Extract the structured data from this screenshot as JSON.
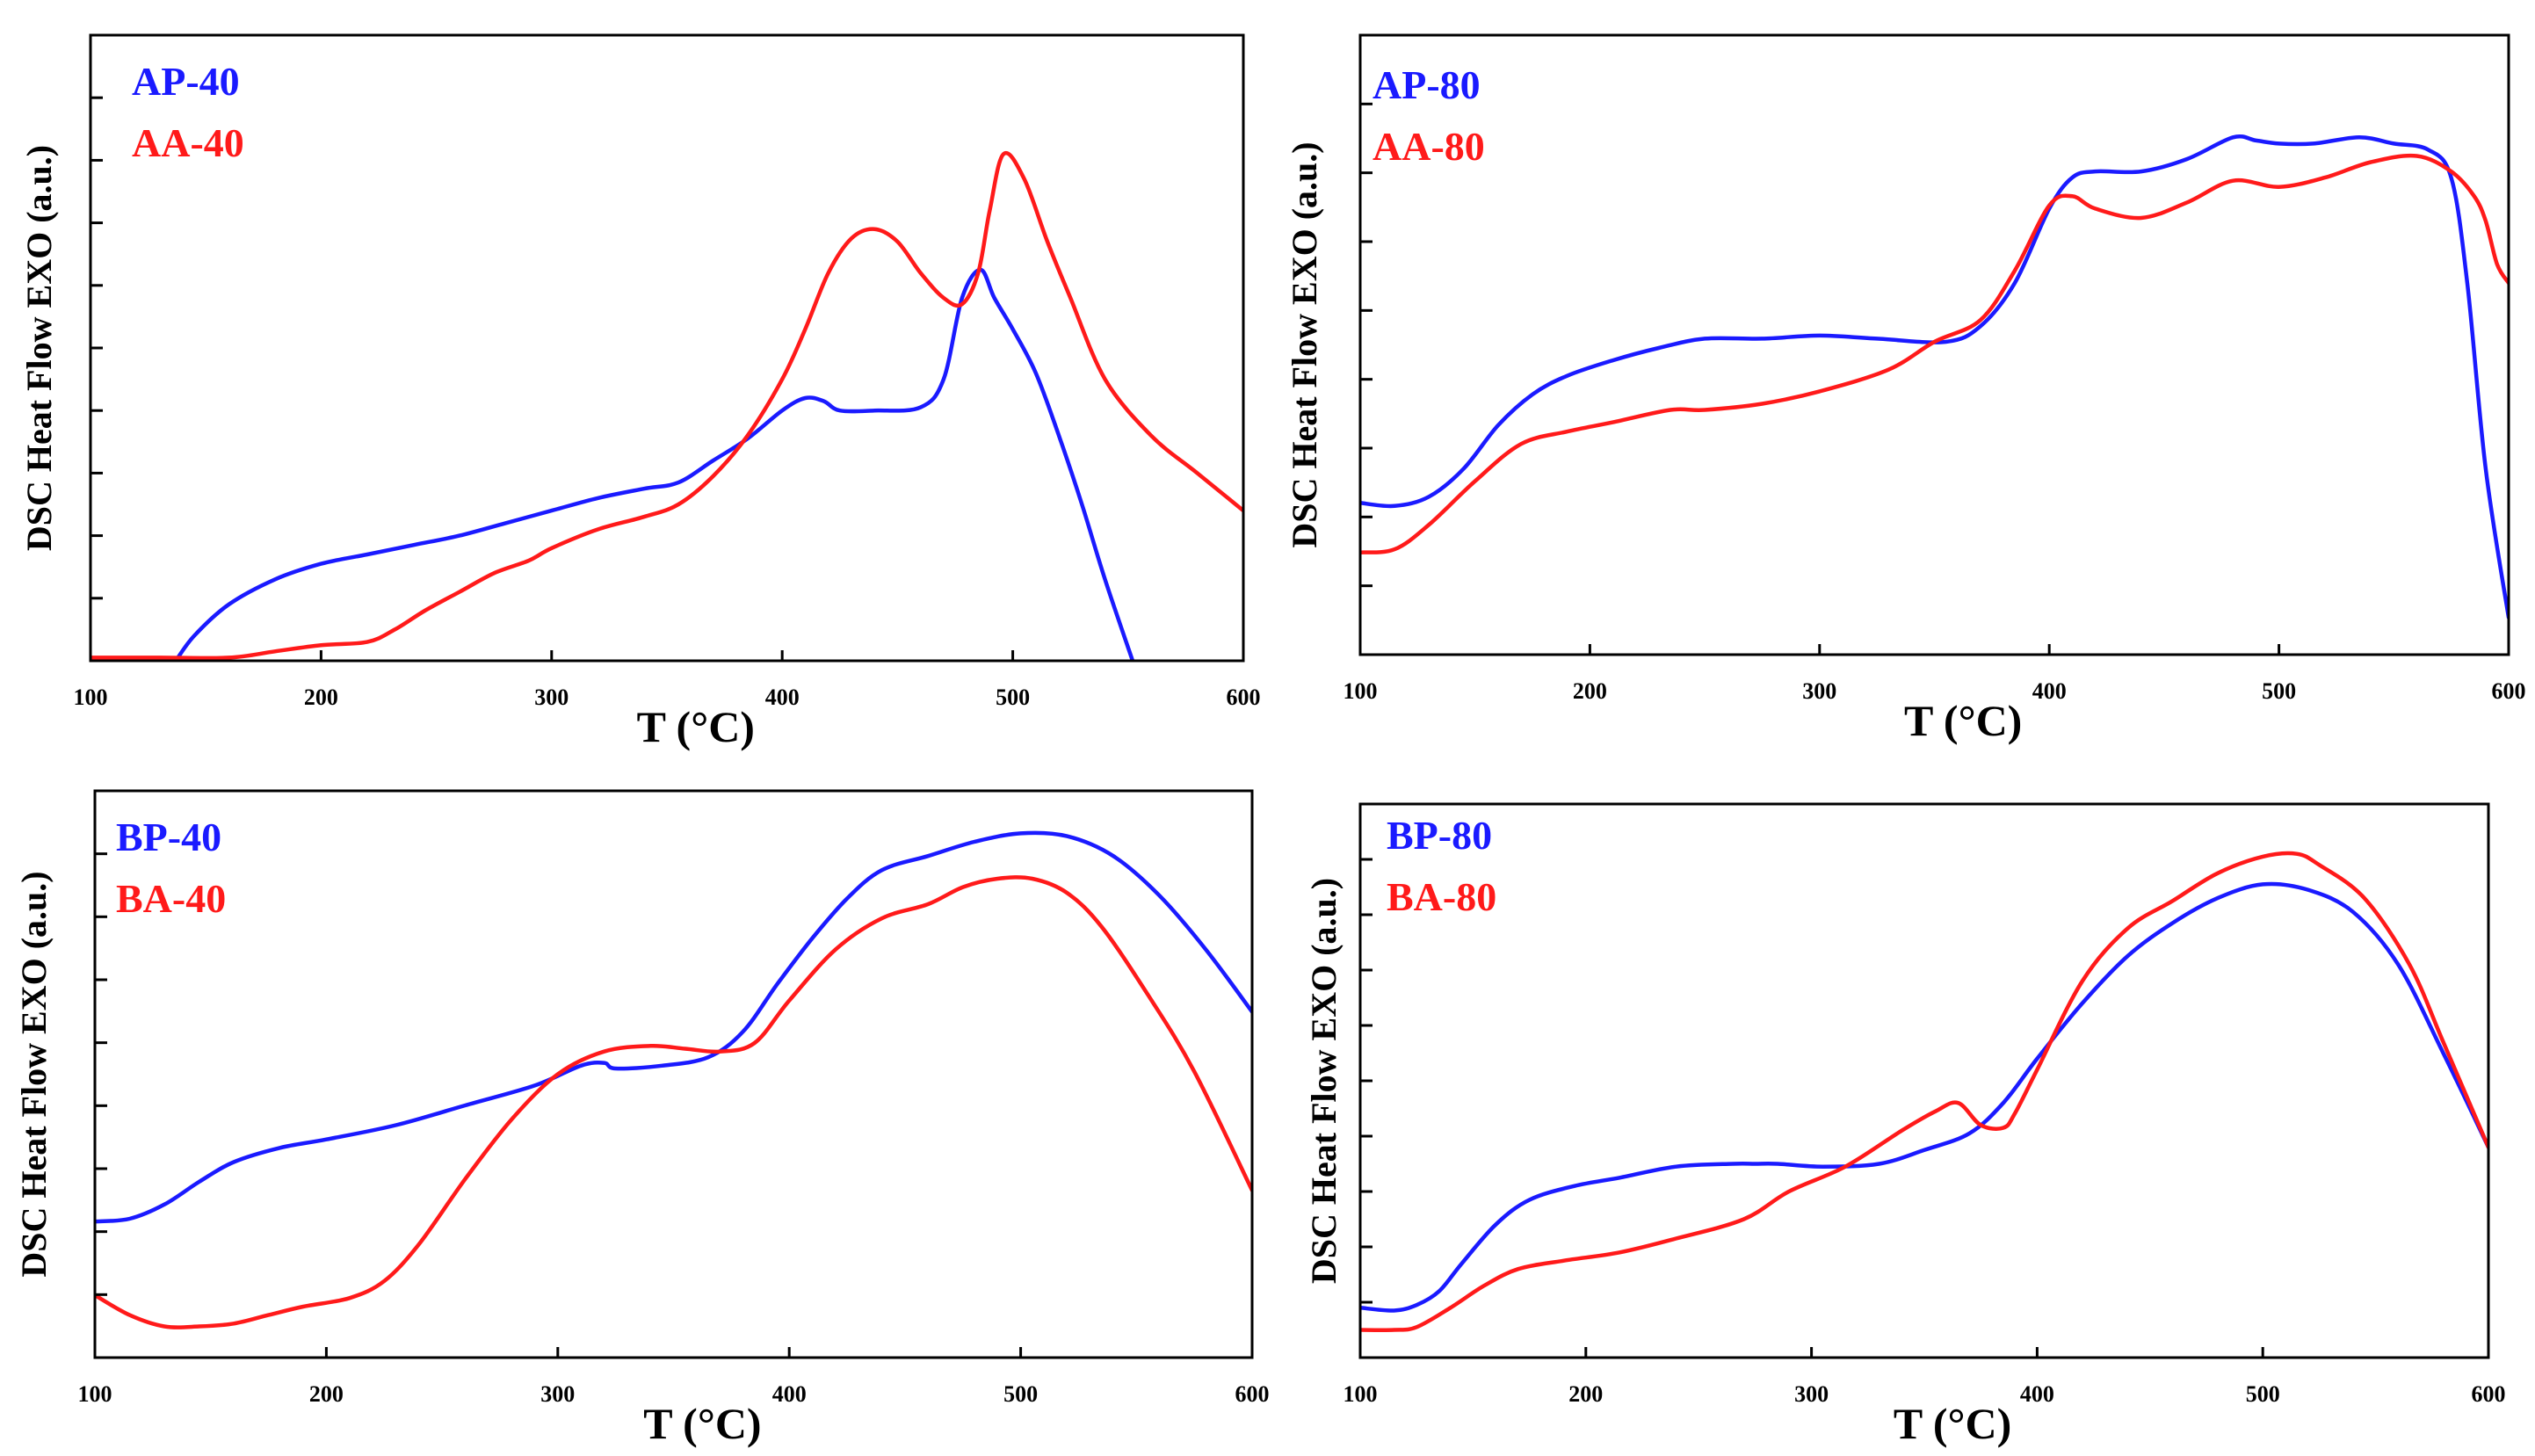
{
  "colors": {
    "series_a": "#1a1aff",
    "series_b": "#ff1a1a",
    "axis": "#000000"
  },
  "chart_data": [
    {
      "type": "line",
      "xlabel": "T (°C)",
      "ylabel": "DSC Heat Flow EXO (a.u.)",
      "xlim": [
        100,
        600
      ],
      "ylim": [
        0,
        100
      ],
      "xticks": [
        100,
        200,
        300,
        400,
        500,
        600
      ],
      "ytick_count": 9,
      "legend_position": "top-left",
      "series": [
        {
          "name": "AP-40",
          "color": "#1a1aff",
          "x": [
            137,
            145,
            160,
            180,
            200,
            220,
            240,
            260,
            280,
            300,
            320,
            340,
            355,
            370,
            385,
            400,
            410,
            418,
            425,
            440,
            460,
            470,
            478,
            486,
            492,
            500,
            510,
            520,
            530,
            540,
            552
          ],
          "y": [
            0,
            4,
            9,
            13,
            15.5,
            17,
            18.5,
            20,
            22,
            24,
            26,
            27.5,
            28.5,
            32,
            35.5,
            40,
            42,
            41.5,
            40,
            40,
            40.5,
            45,
            58,
            62.5,
            58,
            53,
            46,
            36,
            25,
            13,
            0
          ]
        },
        {
          "name": "AA-40",
          "color": "#ff1a1a",
          "x": [
            100,
            130,
            160,
            180,
            200,
            220,
            232,
            245,
            260,
            275,
            290,
            300,
            320,
            340,
            355,
            370,
            385,
            400,
            410,
            420,
            430,
            440,
            450,
            460,
            470,
            478,
            485,
            490,
            496,
            505,
            515,
            525,
            540,
            560,
            580,
            600
          ],
          "y": [
            0.5,
            0.5,
            0.5,
            1.5,
            2.5,
            3,
            5,
            8,
            11,
            14,
            16,
            18,
            21,
            23,
            25,
            29.5,
            36,
            45,
            53,
            62,
            67.5,
            69,
            67,
            62,
            58,
            57,
            62,
            72,
            81,
            77,
            67,
            58,
            45,
            36,
            30,
            24
          ]
        }
      ]
    },
    {
      "type": "line",
      "xlabel": "T (°C)",
      "ylabel": "DSC Heat Flow EXO (a.u.)",
      "xlim": [
        100,
        600
      ],
      "ylim": [
        0,
        100
      ],
      "xticks": [
        100,
        200,
        300,
        400,
        500,
        600
      ],
      "ytick_count": 8,
      "legend_position": "top-left",
      "series": [
        {
          "name": "AP-80",
          "color": "#1a1aff",
          "x": [
            100,
            115,
            130,
            145,
            160,
            175,
            190,
            210,
            230,
            250,
            275,
            300,
            325,
            355,
            370,
            385,
            400,
            410,
            420,
            440,
            460,
            480,
            490,
            500,
            515,
            535,
            550,
            565,
            575,
            582,
            590,
            600
          ],
          "y": [
            24.5,
            24,
            25.5,
            30,
            37,
            42,
            45,
            47.5,
            49.5,
            51,
            51,
            51.5,
            51,
            50.5,
            53,
            60,
            72,
            77,
            78,
            78,
            80,
            83.5,
            83,
            82.5,
            82.5,
            83.5,
            82.5,
            81.5,
            77,
            60,
            30,
            6
          ]
        },
        {
          "name": "AA-80",
          "color": "#ff1a1a",
          "x": [
            100,
            115,
            130,
            150,
            170,
            190,
            210,
            235,
            250,
            275,
            300,
            330,
            350,
            370,
            385,
            400,
            410,
            420,
            440,
            460,
            480,
            500,
            520,
            540,
            560,
            575,
            585,
            590,
            595,
            600
          ],
          "y": [
            16.5,
            17,
            21,
            28,
            34,
            36,
            37.5,
            39.5,
            39.5,
            40.5,
            42.5,
            46,
            50.5,
            54,
            62,
            72.5,
            74,
            72,
            70.5,
            73,
            76.5,
            75.5,
            77,
            79.5,
            80.5,
            78,
            74,
            70,
            63,
            60
          ]
        }
      ]
    },
    {
      "type": "line",
      "xlabel": "T (°C)",
      "ylabel": "DSC Heat Flow EXO (a.u.)",
      "xlim": [
        100,
        600
      ],
      "ylim": [
        0,
        100
      ],
      "xticks": [
        100,
        200,
        300,
        400,
        500,
        600
      ],
      "ytick_count": 8,
      "legend_position": "top-left",
      "series": [
        {
          "name": "BP-40",
          "color": "#1a1aff",
          "x": [
            100,
            115,
            130,
            145,
            160,
            180,
            200,
            230,
            260,
            290,
            310,
            320,
            325,
            345,
            365,
            380,
            395,
            410,
            425,
            440,
            460,
            480,
            500,
            520,
            540,
            560,
            580,
            600
          ],
          "y": [
            24,
            24.5,
            27,
            31,
            34.5,
            37,
            38.5,
            41,
            44.5,
            48,
            51.5,
            52,
            51,
            51.5,
            53,
            57.5,
            66,
            74,
            81,
            86,
            88.5,
            91,
            92.5,
            92,
            88.5,
            81.5,
            72,
            61
          ]
        },
        {
          "name": "BA-40",
          "color": "#ff1a1a",
          "x": [
            100,
            115,
            130,
            145,
            160,
            175,
            190,
            210,
            225,
            240,
            260,
            280,
            300,
            320,
            340,
            355,
            370,
            385,
            400,
            420,
            440,
            460,
            475,
            490,
            505,
            520,
            535,
            555,
            575,
            600
          ],
          "y": [
            11,
            7.5,
            5.5,
            5.5,
            6,
            7.5,
            9,
            10.5,
            13.5,
            20,
            31.5,
            42,
            50,
            54,
            55,
            54.5,
            54,
            55.5,
            63,
            72,
            77.5,
            80,
            83,
            84.5,
            84.5,
            82,
            76,
            64,
            50.5,
            29.5
          ]
        }
      ]
    },
    {
      "type": "line",
      "xlabel": "T (°C)",
      "ylabel": "DSC Heat Flow EXO (a.u.)",
      "xlim": [
        100,
        600
      ],
      "ylim": [
        0,
        100
      ],
      "xticks": [
        100,
        200,
        300,
        400,
        500,
        600
      ],
      "ytick_count": 9,
      "legend_position": "top-left",
      "series": [
        {
          "name": "BP-80",
          "color": "#1a1aff",
          "x": [
            100,
            115,
            125,
            135,
            145,
            160,
            175,
            195,
            215,
            240,
            265,
            275,
            285,
            305,
            330,
            350,
            370,
            385,
            400,
            420,
            440,
            460,
            480,
            500,
            520,
            540,
            560,
            580,
            600
          ],
          "y": [
            9,
            8.5,
            9.5,
            12,
            17,
            24,
            28.5,
            31,
            32.5,
            34.5,
            35,
            35,
            35,
            34.5,
            35,
            37.5,
            40.5,
            46,
            54,
            64,
            72.5,
            78.5,
            83,
            85.5,
            84.5,
            80.5,
            71,
            55,
            38
          ]
        },
        {
          "name": "BA-80",
          "color": "#ff1a1a",
          "x": [
            100,
            115,
            125,
            140,
            155,
            170,
            190,
            215,
            240,
            270,
            290,
            315,
            340,
            355,
            365,
            375,
            385,
            390,
            400,
            420,
            440,
            460,
            480,
            500,
            515,
            525,
            545,
            565,
            580,
            600
          ],
          "y": [
            5,
            5,
            5.5,
            9,
            13,
            16,
            17.5,
            19,
            21.5,
            25,
            30,
            34.5,
            41,
            44.5,
            46,
            42,
            41.5,
            44,
            52,
            68,
            77.5,
            82.5,
            87.5,
            90.5,
            91,
            89,
            83,
            71,
            57,
            38
          ]
        }
      ]
    }
  ]
}
